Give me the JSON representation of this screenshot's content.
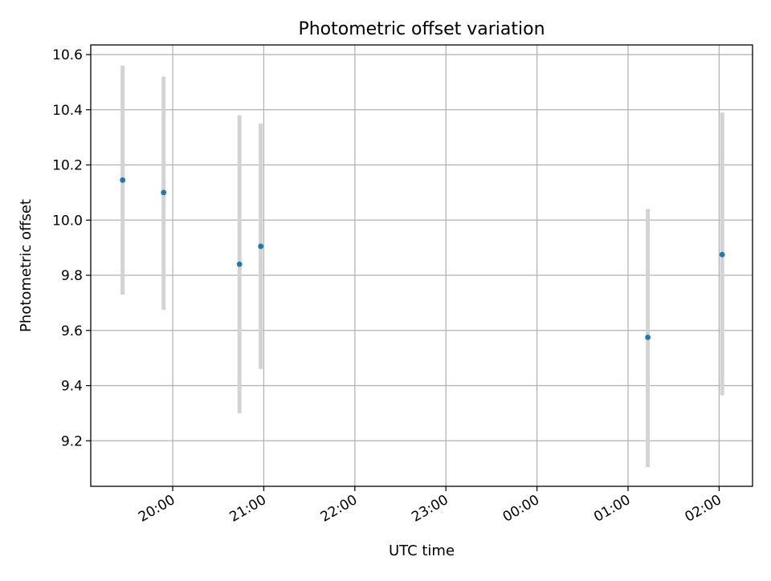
{
  "chart_data": {
    "type": "scatter",
    "title": "Photometric offset variation",
    "xlabel": "UTC time",
    "ylabel": "Photometric offset",
    "x_axis": {
      "kind": "time",
      "range": [
        "19:06",
        "02:22"
      ],
      "ticks": [
        "20:00",
        "21:00",
        "22:00",
        "23:00",
        "00:00",
        "01:00",
        "02:00"
      ]
    },
    "y_axis": {
      "range": [
        9.035,
        10.635
      ],
      "ticks": [
        9.2,
        9.4,
        9.6,
        9.8,
        10.0,
        10.2,
        10.4,
        10.6
      ],
      "tick_labels": [
        "9.2",
        "9.4",
        "9.6",
        "9.8",
        "10.0",
        "10.2",
        "10.4",
        "10.6"
      ]
    },
    "grid": true,
    "series": [
      {
        "marker_color": "#1f77b4",
        "errorbar_color": "#d3d3d3",
        "points": [
          {
            "time": "19:27",
            "value": 10.145,
            "low": 9.73,
            "high": 10.56
          },
          {
            "time": "19:54",
            "value": 10.1,
            "low": 9.675,
            "high": 10.52
          },
          {
            "time": "20:44",
            "value": 9.84,
            "low": 9.3,
            "high": 10.38
          },
          {
            "time": "20:58",
            "value": 9.905,
            "low": 9.46,
            "high": 10.35
          },
          {
            "time": "01:13",
            "value": 9.575,
            "low": 9.105,
            "high": 10.04
          },
          {
            "time": "02:02",
            "value": 9.875,
            "low": 9.365,
            "high": 10.39
          }
        ]
      }
    ]
  }
}
